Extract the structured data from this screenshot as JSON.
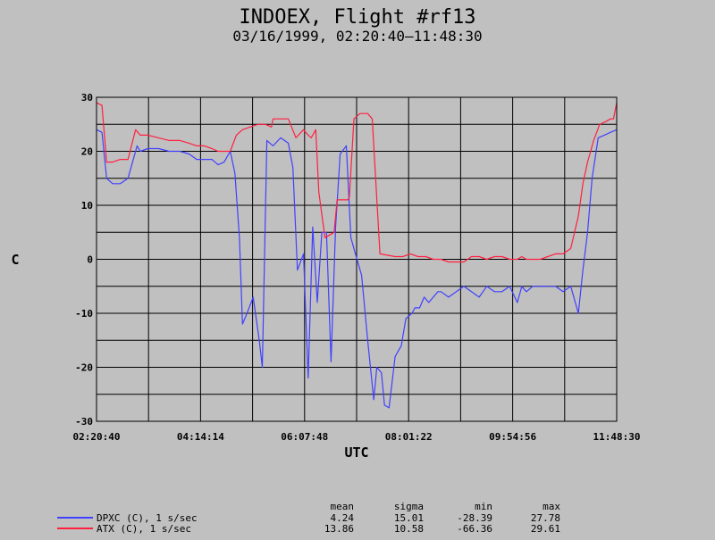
{
  "chart_data": {
    "type": "line",
    "title": "INDOEX, Flight #rf13",
    "subtitle": "03/16/1999, 02:20:40–11:48:30",
    "xlabel": "UTC",
    "ylabel": "C",
    "ylim": [
      -30,
      30
    ],
    "yticks": [
      -30,
      -20,
      -10,
      0,
      10,
      20,
      30
    ],
    "xticks": [
      "02:20:40",
      "04:14:14",
      "06:07:48",
      "08:01:22",
      "09:54:56",
      "11:48:30"
    ],
    "x_range_seconds": [
      8440,
      42510
    ],
    "grid": true,
    "legend_position": "bottom-left",
    "stats_headers": [
      "mean",
      "sigma",
      "min",
      "max"
    ],
    "series": [
      {
        "name": "DPXC (C), 1 s/sec",
        "color": "#4040ff",
        "stats": [
          "4.24",
          "15.01",
          "-28.39",
          "27.78"
        ],
        "x": [
          8440,
          8800,
          9100,
          9500,
          10000,
          10500,
          11100,
          11300,
          11800,
          12500,
          13200,
          13900,
          14500,
          15000,
          15500,
          16000,
          16400,
          16800,
          17200,
          17500,
          17800,
          18000,
          18300,
          18700,
          19100,
          19300,
          19600,
          20000,
          20500,
          21000,
          21300,
          21600,
          22000,
          22300,
          22600,
          22900,
          23200,
          23500,
          23800,
          24100,
          24400,
          24800,
          25100,
          25400,
          25800,
          26200,
          26600,
          26800,
          27100,
          27300,
          27600,
          28000,
          28400,
          28700,
          29100,
          29300,
          29600,
          29900,
          30200,
          30500,
          30800,
          31000,
          31500,
          32000,
          32500,
          33000,
          33500,
          34000,
          34500,
          35000,
          35500,
          36000,
          36300,
          36600,
          37000,
          37500,
          38000,
          38500,
          39000,
          39500,
          40000,
          40300,
          40600,
          40900,
          41300,
          41700,
          42100,
          42510
        ],
        "values": [
          24,
          23.5,
          15,
          14,
          14,
          15,
          21,
          20,
          20.5,
          20.5,
          20,
          20,
          19.5,
          18.5,
          18.5,
          18.5,
          17.5,
          18,
          20,
          16,
          4,
          -12,
          -10,
          -7,
          -15,
          -20,
          22,
          21,
          22.5,
          21.5,
          17,
          -2,
          1,
          -22,
          6,
          -8,
          5,
          5,
          -19,
          6,
          19.5,
          21,
          4,
          1,
          -3,
          -15,
          -26,
          -20,
          -21,
          -27,
          -27.5,
          -18,
          -16,
          -11,
          -10,
          -9,
          -9,
          -7,
          -8,
          -7,
          -6,
          -6,
          -7,
          -6,
          -5,
          -6,
          -7,
          -5,
          -6,
          -6,
          -5,
          -8,
          -5,
          -6,
          -5,
          -5,
          -5,
          -5,
          -6,
          -5,
          -10,
          -2,
          5,
          15,
          22.5,
          23,
          23.5,
          24
        ]
      },
      {
        "name": "ATX (C), 1 s/sec",
        "color": "#ff2040",
        "stats": [
          "13.86",
          "10.58",
          "-66.36",
          "29.61"
        ],
        "x": [
          8440,
          8800,
          9100,
          9500,
          10000,
          10500,
          11000,
          11300,
          11800,
          12500,
          13200,
          13900,
          14500,
          15000,
          15500,
          16000,
          16400,
          16800,
          17200,
          17600,
          18000,
          18500,
          19000,
          19500,
          19900,
          20000,
          21000,
          21500,
          22000,
          22300,
          22500,
          22800,
          23000,
          23400,
          23700,
          24000,
          24200,
          24500,
          24900,
          25000,
          25300,
          25700,
          25900,
          26200,
          26500,
          27000,
          28000,
          28500,
          29000,
          29500,
          30000,
          30500,
          31000,
          31500,
          32000,
          32500,
          33000,
          33500,
          34000,
          34500,
          35000,
          35500,
          36000,
          36300,
          36600,
          37000,
          37500,
          38000,
          38500,
          39000,
          39500,
          40000,
          40300,
          40600,
          41000,
          41400,
          41800,
          42100,
          42300,
          42510
        ],
        "values": [
          29,
          28.5,
          18,
          18,
          18.5,
          18.5,
          24,
          23,
          23,
          22.5,
          22,
          22,
          21.5,
          21,
          21,
          20.5,
          20,
          20,
          20,
          23,
          24,
          24.5,
          25,
          25,
          24.5,
          26,
          26,
          22.5,
          24,
          23,
          22.5,
          24,
          12.5,
          4,
          4.5,
          5,
          11,
          11,
          11,
          11.5,
          26,
          27,
          27,
          27,
          26,
          1,
          0.5,
          0.5,
          1,
          0.5,
          0.5,
          0,
          0,
          -0.5,
          -0.5,
          -0.5,
          0.5,
          0.5,
          0,
          0.5,
          0.5,
          0,
          0,
          0.5,
          0,
          0,
          0,
          0.5,
          1,
          1,
          2,
          8,
          14,
          18,
          22,
          25,
          25.5,
          26,
          26,
          29
        ]
      }
    ]
  }
}
